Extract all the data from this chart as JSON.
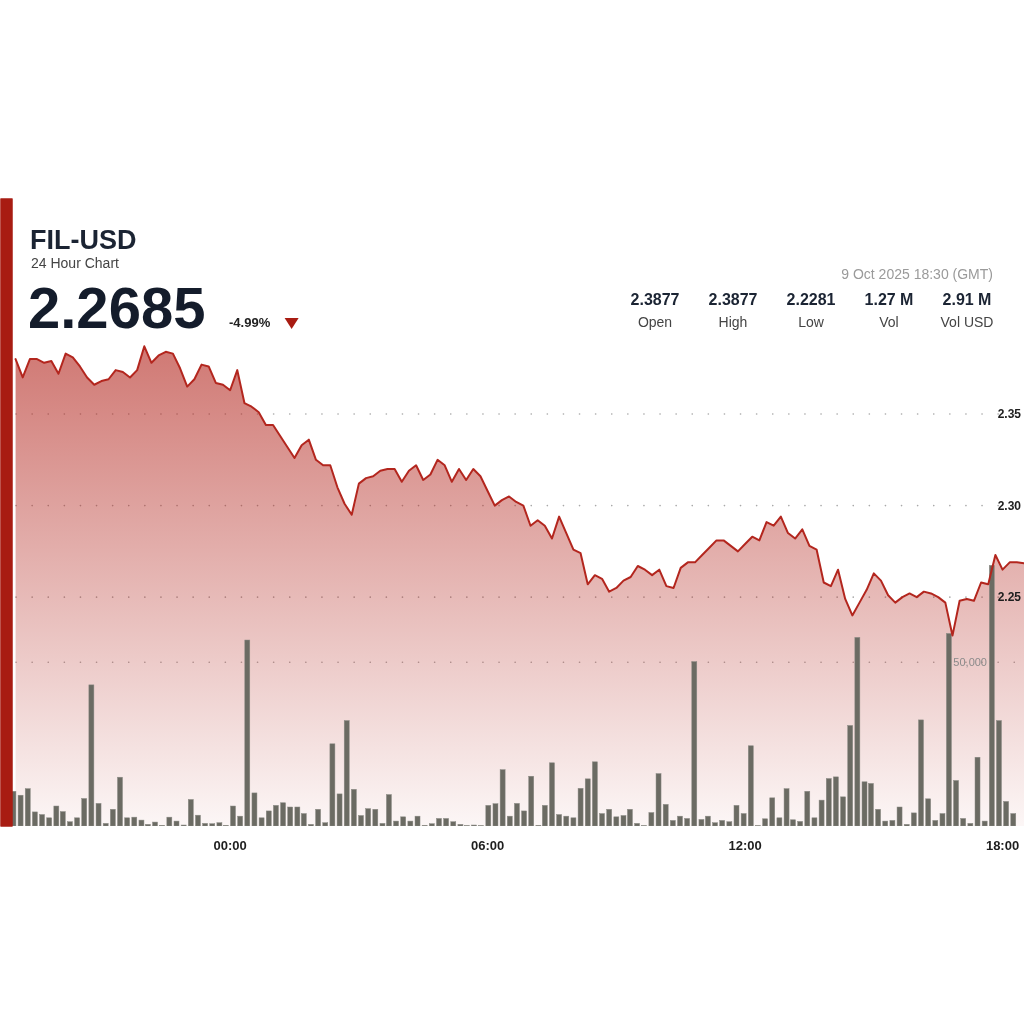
{
  "chart_data": {
    "type": "area",
    "title": "FIL-USD",
    "subtitle": "24 Hour Chart",
    "annotations": [
      "2.2685",
      "-4.99%",
      "9 Oct 2025 18:30 (GMT)",
      "2.3877",
      "Open",
      "2.3877",
      "High",
      "2.2281",
      "Low",
      "1.27 M",
      "Vol",
      "2.91 M",
      "Vol USD"
    ],
    "xlim": [
      "2025-10-08T18:55",
      "2025-10-09T18:30"
    ],
    "xticks": [
      {
        "value": "2025-10-09T00:00",
        "label": "00:00"
      },
      {
        "value": "2025-10-09T06:00",
        "label": "06:00"
      },
      {
        "value": "2025-10-09T12:00",
        "label": "12:00"
      },
      {
        "value": "2025-10-09T18:00",
        "label": "18:00"
      }
    ],
    "ylim": [
      2.125,
      2.468
    ],
    "yticks": [
      2.25,
      {
        "value": 2.3,
        "label": "2.30"
      },
      2.35
    ],
    "y2lim": [
      0,
      191800
    ],
    "y2ticks": [
      {
        "value": 50000,
        "label": "50,000"
      }
    ],
    "grid": "y",
    "series": [
      {
        "color": "#b3261e",
        "x": [
          "2025-10-08T19:00",
          "2025-10-08T19:10",
          "2025-10-08T19:20",
          "2025-10-08T19:30",
          "2025-10-08T19:40",
          "2025-10-08T19:50",
          "2025-10-08T20:00",
          "2025-10-08T20:10",
          "2025-10-08T20:20",
          "2025-10-08T20:30",
          "2025-10-08T20:40",
          "2025-10-08T20:50",
          "2025-10-08T21:00",
          "2025-10-08T21:10",
          "2025-10-08T21:20",
          "2025-10-08T21:30",
          "2025-10-08T21:40",
          "2025-10-08T21:50",
          "2025-10-08T22:00",
          "2025-10-08T22:10",
          "2025-10-08T22:20",
          "2025-10-08T22:30",
          "2025-10-08T22:40",
          "2025-10-08T22:50",
          "2025-10-08T23:00",
          "2025-10-08T23:10",
          "2025-10-08T23:20",
          "2025-10-08T23:30",
          "2025-10-08T23:40",
          "2025-10-08T23:50",
          "2025-10-09T00:00",
          "2025-10-09T00:10",
          "2025-10-09T00:20",
          "2025-10-09T00:30",
          "2025-10-09T00:40",
          "2025-10-09T00:50",
          "2025-10-09T01:00",
          "2025-10-09T01:10",
          "2025-10-09T01:20",
          "2025-10-09T01:30",
          "2025-10-09T01:40",
          "2025-10-09T01:50",
          "2025-10-09T02:00",
          "2025-10-09T02:10",
          "2025-10-09T02:20",
          "2025-10-09T02:30",
          "2025-10-09T02:40",
          "2025-10-09T02:50",
          "2025-10-09T03:00",
          "2025-10-09T03:10",
          "2025-10-09T03:20",
          "2025-10-09T03:30",
          "2025-10-09T03:40",
          "2025-10-09T03:50",
          "2025-10-09T04:00",
          "2025-10-09T04:10",
          "2025-10-09T04:20",
          "2025-10-09T04:30",
          "2025-10-09T04:40",
          "2025-10-09T04:50",
          "2025-10-09T05:00",
          "2025-10-09T05:10",
          "2025-10-09T05:20",
          "2025-10-09T05:30",
          "2025-10-09T05:40",
          "2025-10-09T05:50",
          "2025-10-09T06:00",
          "2025-10-09T06:10",
          "2025-10-09T06:20",
          "2025-10-09T06:30",
          "2025-10-09T06:40",
          "2025-10-09T06:50",
          "2025-10-09T07:00",
          "2025-10-09T07:10",
          "2025-10-09T07:20",
          "2025-10-09T07:30",
          "2025-10-09T07:40",
          "2025-10-09T07:50",
          "2025-10-09T08:00",
          "2025-10-09T08:10",
          "2025-10-09T08:20",
          "2025-10-09T08:30",
          "2025-10-09T08:40",
          "2025-10-09T08:50",
          "2025-10-09T09:00",
          "2025-10-09T09:10",
          "2025-10-09T09:20",
          "2025-10-09T09:30",
          "2025-10-09T09:40",
          "2025-10-09T09:50",
          "2025-10-09T10:00",
          "2025-10-09T10:10",
          "2025-10-09T10:20",
          "2025-10-09T10:30",
          "2025-10-09T10:40",
          "2025-10-09T10:50",
          "2025-10-09T11:00",
          "2025-10-09T11:10",
          "2025-10-09T11:20",
          "2025-10-09T11:30",
          "2025-10-09T11:40",
          "2025-10-09T11:50",
          "2025-10-09T12:00",
          "2025-10-09T12:10",
          "2025-10-09T12:20",
          "2025-10-09T12:30",
          "2025-10-09T12:40",
          "2025-10-09T12:50",
          "2025-10-09T13:00",
          "2025-10-09T13:10",
          "2025-10-09T13:20",
          "2025-10-09T13:30",
          "2025-10-09T13:40",
          "2025-10-09T13:50",
          "2025-10-09T14:00",
          "2025-10-09T14:10",
          "2025-10-09T14:20",
          "2025-10-09T14:30",
          "2025-10-09T14:40",
          "2025-10-09T14:50",
          "2025-10-09T15:00",
          "2025-10-09T15:10",
          "2025-10-09T15:20",
          "2025-10-09T15:30",
          "2025-10-09T15:40",
          "2025-10-09T15:50",
          "2025-10-09T16:00",
          "2025-10-09T16:10",
          "2025-10-09T16:20",
          "2025-10-09T16:30",
          "2025-10-09T16:40",
          "2025-10-09T16:50",
          "2025-10-09T17:00",
          "2025-10-09T17:10",
          "2025-10-09T17:20",
          "2025-10-09T17:30",
          "2025-10-09T17:40",
          "2025-10-09T17:50",
          "2025-10-09T18:00",
          "2025-10-09T18:10",
          "2025-10-09T18:20",
          "2025-10-09T18:30"
        ],
        "values": [
          2.38,
          2.37,
          2.38,
          2.38,
          2.378,
          2.379,
          2.372,
          2.383,
          2.381,
          2.376,
          2.37,
          2.366,
          2.368,
          2.369,
          2.374,
          2.373,
          2.37,
          2.374,
          2.387,
          2.378,
          2.382,
          2.384,
          2.383,
          2.375,
          2.365,
          2.369,
          2.377,
          2.376,
          2.367,
          2.366,
          2.363,
          2.374,
          2.356,
          2.354,
          2.351,
          2.344,
          2.344,
          2.338,
          2.332,
          2.326,
          2.333,
          2.336,
          2.325,
          2.322,
          2.322,
          2.31,
          2.301,
          2.295,
          2.312,
          2.315,
          2.316,
          2.319,
          2.32,
          2.32,
          2.313,
          2.319,
          2.322,
          2.314,
          2.317,
          2.325,
          2.322,
          2.313,
          2.32,
          2.314,
          2.32,
          2.316,
          2.308,
          2.3,
          2.303,
          2.305,
          2.302,
          2.3,
          2.289,
          2.292,
          2.289,
          2.282,
          2.294,
          2.285,
          2.276,
          2.274,
          2.257,
          2.262,
          2.26,
          2.253,
          2.255,
          2.259,
          2.261,
          2.267,
          2.265,
          2.262,
          2.265,
          2.256,
          2.255,
          2.266,
          2.269,
          2.269,
          2.273,
          2.277,
          2.281,
          2.281,
          2.278,
          2.275,
          2.279,
          2.283,
          2.281,
          2.291,
          2.289,
          2.294,
          2.285,
          2.282,
          2.287,
          2.278,
          2.276,
          2.258,
          2.256,
          2.265,
          2.249,
          2.24,
          2.247,
          2.254,
          2.263,
          2.259,
          2.251,
          2.247,
          2.25,
          2.252,
          2.25,
          2.253,
          2.252,
          2.25,
          2.247,
          2.229,
          2.248,
          2.249,
          2.248,
          2.258,
          2.257,
          2.273,
          2.265,
          2.269,
          2.269,
          2.2685
        ]
      },
      {
        "type": "bar",
        "color": "#6b6b63",
        "axis": "y2",
        "x": [
          "2025-10-08T18:57",
          "2025-10-08T19:07",
          "2025-10-08T19:17",
          "2025-10-08T19:27",
          "2025-10-08T19:37",
          "2025-10-08T19:47",
          "2025-10-08T19:57",
          "2025-10-08T20:06",
          "2025-10-08T20:16",
          "2025-10-08T20:26",
          "2025-10-08T20:36",
          "2025-10-08T20:46",
          "2025-10-08T20:56",
          "2025-10-08T21:06",
          "2025-10-08T21:16",
          "2025-10-08T21:26",
          "2025-10-08T21:36",
          "2025-10-08T21:46",
          "2025-10-08T21:56",
          "2025-10-08T22:05",
          "2025-10-08T22:15",
          "2025-10-08T22:25",
          "2025-10-08T22:35",
          "2025-10-08T22:45",
          "2025-10-08T22:55",
          "2025-10-08T23:05",
          "2025-10-08T23:15",
          "2025-10-08T23:25",
          "2025-10-08T23:35",
          "2025-10-08T23:45",
          "2025-10-08T23:54",
          "2025-10-09T00:04",
          "2025-10-09T00:14",
          "2025-10-09T00:24",
          "2025-10-09T00:34",
          "2025-10-09T00:44",
          "2025-10-09T00:54",
          "2025-10-09T01:04",
          "2025-10-09T01:14",
          "2025-10-09T01:24",
          "2025-10-09T01:34",
          "2025-10-09T01:43",
          "2025-10-09T01:53",
          "2025-10-09T02:03",
          "2025-10-09T02:13",
          "2025-10-09T02:23",
          "2025-10-09T02:33",
          "2025-10-09T02:43",
          "2025-10-09T02:53",
          "2025-10-09T03:03",
          "2025-10-09T03:13",
          "2025-10-09T03:23",
          "2025-10-09T03:33",
          "2025-10-09T03:42",
          "2025-10-09T03:52",
          "2025-10-09T04:02",
          "2025-10-09T04:12",
          "2025-10-09T04:22",
          "2025-10-09T04:32",
          "2025-10-09T04:42",
          "2025-10-09T04:52",
          "2025-10-09T05:02",
          "2025-10-09T05:12",
          "2025-10-09T05:22",
          "2025-10-09T05:31",
          "2025-10-09T05:41",
          "2025-10-09T05:51",
          "2025-10-09T06:01",
          "2025-10-09T06:11",
          "2025-10-09T06:21",
          "2025-10-09T06:31",
          "2025-10-09T06:41",
          "2025-10-09T06:51",
          "2025-10-09T07:01",
          "2025-10-09T07:11",
          "2025-10-09T07:20",
          "2025-10-09T07:30",
          "2025-10-09T07:40",
          "2025-10-09T07:50",
          "2025-10-09T08:00",
          "2025-10-09T08:10",
          "2025-10-09T08:20",
          "2025-10-09T08:30",
          "2025-10-09T08:40",
          "2025-10-09T08:50",
          "2025-10-09T09:00",
          "2025-10-09T09:10",
          "2025-10-09T09:19",
          "2025-10-09T09:29",
          "2025-10-09T09:39",
          "2025-10-09T09:49",
          "2025-10-09T09:59",
          "2025-10-09T10:09",
          "2025-10-09T10:19",
          "2025-10-09T10:29",
          "2025-10-09T10:39",
          "2025-10-09T10:49",
          "2025-10-09T10:59",
          "2025-10-09T11:08",
          "2025-10-09T11:18",
          "2025-10-09T11:28",
          "2025-10-09T11:38",
          "2025-10-09T11:48",
          "2025-10-09T11:58",
          "2025-10-09T12:08",
          "2025-10-09T12:18",
          "2025-10-09T12:28",
          "2025-10-09T12:38",
          "2025-10-09T12:48",
          "2025-10-09T12:58",
          "2025-10-09T13:07",
          "2025-10-09T13:17",
          "2025-10-09T13:27",
          "2025-10-09T13:37",
          "2025-10-09T13:47",
          "2025-10-09T13:57",
          "2025-10-09T14:07",
          "2025-10-09T14:17",
          "2025-10-09T14:27",
          "2025-10-09T14:37",
          "2025-10-09T14:47",
          "2025-10-09T14:56",
          "2025-10-09T15:06",
          "2025-10-09T15:16",
          "2025-10-09T15:26",
          "2025-10-09T15:36",
          "2025-10-09T15:46",
          "2025-10-09T15:56",
          "2025-10-09T16:06",
          "2025-10-09T16:16",
          "2025-10-09T16:26",
          "2025-10-09T16:36",
          "2025-10-09T16:45",
          "2025-10-09T16:55",
          "2025-10-09T17:05",
          "2025-10-09T17:15",
          "2025-10-09T17:25",
          "2025-10-09T17:35",
          "2025-10-09T17:45",
          "2025-10-09T17:55",
          "2025-10-09T18:05",
          "2025-10-09T18:15"
        ],
        "values": [
          10600,
          9400,
          11400,
          4300,
          3500,
          2500,
          6100,
          4400,
          1300,
          2500,
          8400,
          43100,
          6900,
          800,
          5100,
          14900,
          2500,
          2700,
          1800,
          500,
          1200,
          200,
          2700,
          1500,
          300,
          8100,
          3300,
          800,
          700,
          1000,
          200,
          6100,
          3000,
          56800,
          10100,
          2500,
          4600,
          6300,
          7100,
          5800,
          5800,
          3800,
          500,
          5100,
          1000,
          25100,
          9800,
          32200,
          11200,
          3200,
          5300,
          5100,
          800,
          9600,
          1500,
          2800,
          1500,
          3000,
          200,
          700,
          2300,
          2300,
          1300,
          500,
          100,
          300,
          100,
          6300,
          6800,
          17200,
          3000,
          6900,
          4600,
          15200,
          200,
          6300,
          19300,
          3500,
          3000,
          2500,
          11500,
          14400,
          19600,
          3800,
          5100,
          2800,
          3200,
          5100,
          800,
          100,
          4100,
          16000,
          6600,
          1700,
          3000,
          2300,
          50200,
          2000,
          3000,
          1000,
          1700,
          1300,
          6300,
          3800,
          24500,
          100,
          2200,
          8600,
          2500,
          11400,
          1900,
          1400,
          10600,
          2500,
          7900,
          14500,
          15000,
          8900,
          30700,
          57600,
          13500,
          13000,
          5100,
          1500,
          1700,
          5800,
          500,
          4000,
          32400,
          8300,
          1700,
          3800,
          58800,
          13900,
          2300,
          800,
          21000,
          1500,
          79600,
          32200,
          7500,
          3800
        ]
      }
    ]
  }
}
